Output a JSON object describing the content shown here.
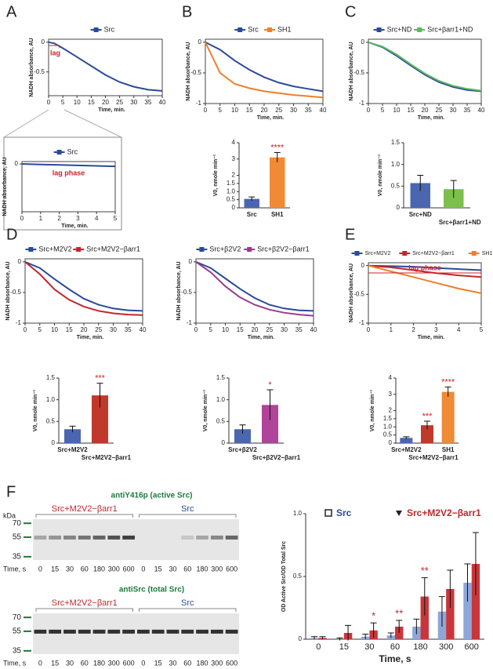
{
  "chart_data": [
    {
      "type": "line",
      "panel": "A",
      "xlabel": "Time, min.",
      "ylabel": "NADH absorbance, AU",
      "x": [
        0,
        2,
        5,
        10,
        15,
        20,
        25,
        30,
        35,
        40
      ],
      "series": [
        {
          "name": "Src",
          "color": "#2a4a9a",
          "values": [
            0,
            -0.02,
            -0.1,
            -0.25,
            -0.4,
            -0.55,
            -0.67,
            -0.75,
            -0.8,
            -0.82
          ]
        }
      ],
      "xlim": [
        0,
        40
      ],
      "ylim": [
        -0.9,
        0.05
      ],
      "xticks": [
        0,
        5,
        10,
        15,
        20,
        25,
        30,
        35,
        40
      ],
      "yticks": [
        0,
        -0.5
      ],
      "annotation": "lag",
      "annotation_color": "#d0202a"
    },
    {
      "type": "line",
      "xlabel": "Time, min.",
      "ylabel": "NADH absorbance, AU",
      "x": [
        0,
        1,
        2,
        3,
        4,
        5
      ],
      "series": [
        {
          "name": "Src",
          "color": "#2a4a9a",
          "values": [
            0,
            -0.01,
            -0.02,
            -0.03,
            -0.04,
            -0.05
          ]
        }
      ],
      "xlim": [
        0,
        5
      ],
      "ylim": [
        -1,
        0.05
      ],
      "xticks": [
        0,
        1,
        2,
        3,
        4,
        5
      ],
      "yticks": [
        0
      ],
      "annotation": "lag phase",
      "annotation_color": "#d0202a"
    },
    {
      "type": "line",
      "panel": "B",
      "xlabel": "Time, min.",
      "ylabel": "NADH absorbance, AU",
      "x": [
        0,
        5,
        10,
        15,
        20,
        25,
        30,
        35,
        40
      ],
      "series": [
        {
          "name": "Src",
          "color": "#2a4a9a",
          "values": [
            0,
            -0.12,
            -0.3,
            -0.45,
            -0.57,
            -0.66,
            -0.72,
            -0.76,
            -0.8
          ]
        },
        {
          "name": "SH1",
          "color": "#f07f2a",
          "values": [
            0,
            -0.5,
            -0.68,
            -0.75,
            -0.8,
            -0.83,
            -0.86,
            -0.88,
            -0.9
          ]
        }
      ],
      "xlim": [
        0,
        40
      ],
      "ylim": [
        -1,
        0.05
      ],
      "xticks": [
        0,
        5,
        10,
        15,
        20,
        25,
        30,
        35,
        40
      ],
      "yticks": [
        0,
        -0.5,
        -1
      ]
    },
    {
      "type": "bar",
      "ylabel": "V0, nmole min⁻¹",
      "categories": [
        "Src",
        "SH1"
      ],
      "values": [
        0.55,
        3.1
      ],
      "errors": [
        0.12,
        0.3
      ],
      "colors": [
        "#4a66b0",
        "#f08a35"
      ],
      "ylim": [
        0,
        4
      ],
      "yticks": [
        0,
        0.5,
        {
          "value": 1,
          "label": "1.0"
        },
        1.5,
        2,
        3,
        4
      ],
      "annotations": [
        null,
        "****"
      ],
      "annotation_color": "#d0202a"
    },
    {
      "type": "line",
      "panel": "C",
      "xlabel": "Time, min.",
      "ylabel": "NADH absorbance, AU",
      "x": [
        0,
        5,
        10,
        15,
        20,
        25,
        30,
        35,
        40
      ],
      "series": [
        {
          "name": "Src+ND",
          "color": "#2a4a9a",
          "values": [
            0,
            -0.08,
            -0.22,
            -0.38,
            -0.53,
            -0.65,
            -0.73,
            -0.78,
            -0.8
          ]
        },
        {
          "name": "Src+βarr1+ND",
          "color": "#5cb85c",
          "values": [
            0,
            -0.07,
            -0.2,
            -0.36,
            -0.51,
            -0.63,
            -0.71,
            -0.76,
            -0.79
          ]
        }
      ],
      "xlim": [
        0,
        40
      ],
      "ylim": [
        -1,
        0.05
      ],
      "xticks": [
        0,
        5,
        10,
        15,
        20,
        25,
        30,
        35,
        40
      ],
      "yticks": [
        0,
        -0.5,
        -1
      ]
    },
    {
      "type": "bar",
      "ylabel": "V0, nmole min⁻¹",
      "categories": [
        "Src+ND",
        "Src+βarr1+ND"
      ],
      "values": [
        0.57,
        0.43
      ],
      "errors": [
        0.18,
        0.2
      ],
      "colors": [
        "#4a66b0",
        "#7cbf4a"
      ],
      "ylim": [
        0,
        1.5
      ],
      "yticks": [
        0,
        0.5,
        {
          "value": 1,
          "label": "1.0"
        },
        1.5
      ]
    },
    {
      "type": "line",
      "panel": "D",
      "xlabel": "Time, min.",
      "ylabel": "NADH absorbance, AU",
      "x": [
        0,
        5,
        10,
        15,
        20,
        25,
        30,
        35,
        40
      ],
      "series": [
        {
          "name": "Src+M2V2",
          "color": "#2a4a9a",
          "values": [
            0,
            -0.1,
            -0.28,
            -0.45,
            -0.6,
            -0.7,
            -0.76,
            -0.79,
            -0.8
          ]
        },
        {
          "name": "Src+M2V2−βarr1",
          "color": "#c0282d",
          "values": [
            0,
            -0.2,
            -0.45,
            -0.62,
            -0.73,
            -0.8,
            -0.84,
            -0.86,
            -0.87
          ]
        }
      ],
      "xlim": [
        0,
        40
      ],
      "ylim": [
        -1,
        0.05
      ],
      "xticks": [
        0,
        5,
        10,
        15,
        20,
        25,
        30,
        35,
        40
      ],
      "yticks": [
        0,
        -0.5,
        -1
      ]
    },
    {
      "type": "bar",
      "ylabel": "V0, nmole min⁻¹",
      "categories": [
        "Src+M2V2",
        "Src+M2V2−βarr1"
      ],
      "values": [
        0.32,
        1.1
      ],
      "errors": [
        0.07,
        0.28
      ],
      "colors": [
        "#4a66b0",
        "#c0392b"
      ],
      "ylim": [
        0,
        1.5
      ],
      "yticks": [
        0,
        0.5,
        {
          "value": 1,
          "label": "1.0"
        },
        1.5
      ],
      "annotations": [
        null,
        "***"
      ],
      "annotation_color": "#d0202a"
    },
    {
      "type": "line",
      "xlabel": "Time, min.",
      "ylabel": "NADH absorbance, AU",
      "x": [
        0,
        5,
        10,
        15,
        20,
        25,
        30,
        35,
        40
      ],
      "series": [
        {
          "name": "Src+β2V2",
          "color": "#2a4a9a",
          "values": [
            0,
            -0.1,
            -0.27,
            -0.44,
            -0.59,
            -0.7,
            -0.76,
            -0.79,
            -0.8
          ]
        },
        {
          "name": "Src+β2V2−βarr1",
          "color": "#9b3a8e",
          "values": [
            0,
            -0.17,
            -0.4,
            -0.58,
            -0.7,
            -0.78,
            -0.83,
            -0.86,
            -0.88
          ]
        }
      ],
      "xlim": [
        0,
        40
      ],
      "ylim": [
        -1,
        0.05
      ],
      "xticks": [
        0,
        5,
        10,
        15,
        20,
        25,
        30,
        35,
        40
      ],
      "yticks": [
        0,
        -0.5,
        -1
      ]
    },
    {
      "type": "bar",
      "ylabel": "V0, nmole min⁻¹",
      "categories": [
        "Src+β2V2",
        "Src+β2V2−βarr1"
      ],
      "values": [
        0.32,
        0.88
      ],
      "errors": [
        0.1,
        0.35
      ],
      "colors": [
        "#4a66b0",
        "#b0449a"
      ],
      "ylim": [
        0,
        1.5
      ],
      "yticks": [
        0,
        0.5,
        {
          "value": 1,
          "label": "1.0"
        },
        1.5
      ],
      "annotations": [
        null,
        "*"
      ],
      "annotation_color": "#d0202a"
    },
    {
      "type": "line",
      "panel": "E",
      "xlabel": "Time, min.",
      "ylabel": "NADH absorbance, AU",
      "x": [
        0,
        1,
        2,
        3,
        4,
        5
      ],
      "series": [
        {
          "name": "Src+M2V2",
          "color": "#2a4a9a",
          "values": [
            0,
            -0.01,
            -0.02,
            -0.04,
            -0.06,
            -0.08
          ]
        },
        {
          "name": "Src+M2V2−βarr1",
          "color": "#c0282d",
          "values": [
            0,
            -0.03,
            -0.08,
            -0.13,
            -0.17,
            -0.2
          ]
        },
        {
          "name": "SH1",
          "color": "#f07f2a",
          "values": [
            0,
            -0.1,
            -0.2,
            -0.3,
            -0.4,
            -0.48
          ]
        }
      ],
      "xlim": [
        0,
        5
      ],
      "ylim": [
        -1,
        0.05
      ],
      "xticks": [
        0,
        1,
        2,
        3,
        4,
        5
      ],
      "yticks": [
        0,
        -0.5,
        -1
      ],
      "annotation": "lag phase",
      "annotation_color": "#d0202a"
    },
    {
      "type": "bar",
      "ylabel": "V0, nmole min⁻¹",
      "categories": [
        "Src+M2V2",
        "Src+M2V2−βarr1",
        "SH1"
      ],
      "values": [
        0.32,
        1.1,
        3.15
      ],
      "errors": [
        0.07,
        0.25,
        0.3
      ],
      "colors": [
        "#4a66b0",
        "#c0392b",
        "#f08a35"
      ],
      "ylim": [
        0,
        4
      ],
      "yticks": [
        0,
        0.5,
        {
          "value": 1,
          "label": "1.0"
        },
        1.5,
        2,
        3,
        4
      ],
      "annotations": [
        null,
        "***",
        "****"
      ],
      "annotation_color": "#d0202a"
    },
    {
      "type": "grouped_bar",
      "xlabel": "Time, s",
      "ylabel": "OD Active Src/OD Total Src",
      "categories": [
        "0",
        "15",
        "30",
        "60",
        "180",
        "300",
        "600"
      ],
      "series": [
        {
          "name": "Src",
          "color": "#2a4a9a",
          "fill": "#8fa6d8",
          "values": [
            0.01,
            0.0,
            0.02,
            0.03,
            0.1,
            0.22,
            0.45
          ],
          "errors": [
            0.01,
            0.01,
            0.02,
            0.02,
            0.06,
            0.12,
            0.15
          ]
        },
        {
          "name": "Src+M2V2−βarr1",
          "color": "#c0282d",
          "fill": "#c9363a",
          "values": [
            0.01,
            0.05,
            0.07,
            0.1,
            0.34,
            0.4,
            0.6
          ],
          "errors": [
            0.01,
            0.06,
            0.06,
            0.05,
            0.15,
            0.15,
            0.25
          ],
          "annotations": [
            null,
            null,
            "*",
            "**",
            "**",
            null,
            null
          ]
        }
      ],
      "ylim": [
        0,
        1
      ],
      "yticks": [
        0,
        0.5,
        {
          "value": 1,
          "label": "1.0"
        }
      ]
    }
  ],
  "blots": {
    "panel": "F",
    "kda_label": "kDa",
    "time_label": "Time, s",
    "panels": [
      {
        "title": "antiY416p (active Src)",
        "groups": [
          "Src+M2V2−βarr1",
          "Src"
        ],
        "markers": [
          "70",
          "55",
          "35"
        ],
        "lanes": [
          "0",
          "15",
          "30",
          "60",
          "180",
          "300",
          "600",
          "0",
          "15",
          "30",
          "60",
          "180",
          "300",
          "600"
        ]
      },
      {
        "title": "antiSrc (total Src)",
        "groups": [
          "Src+M2V2−βarr1",
          "Src"
        ],
        "markers": [
          "70",
          "55",
          "35"
        ],
        "lanes": [
          "0",
          "15",
          "30",
          "60",
          "180",
          "300",
          "600",
          "0",
          "15",
          "30",
          "60",
          "180",
          "300",
          "600"
        ]
      }
    ]
  }
}
